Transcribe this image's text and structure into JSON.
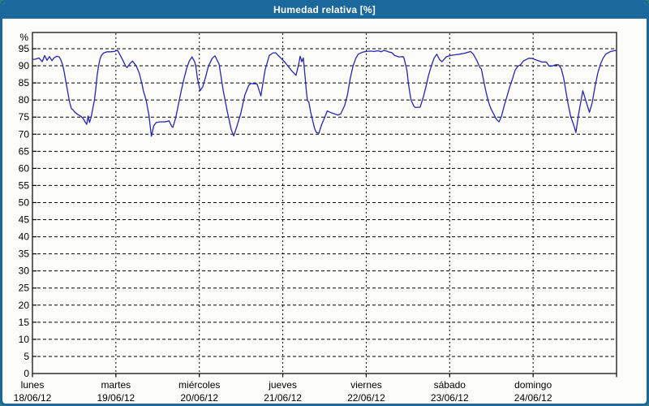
{
  "window": {
    "title": "Humedad relativa [%]"
  },
  "colors": {
    "frame": "#1a689c",
    "titlebar_text": "#ffffff",
    "panel_bg": "#fcfdf8",
    "axis": "#000000",
    "grid": "#000000",
    "line": "#2424bb",
    "outside_corner": "#2e7b7b"
  },
  "chart_data": {
    "type": "line",
    "title": "Humedad relativa [%]",
    "ylabel": "%",
    "ylim": [
      0,
      99.8
    ],
    "yticks": [
      0,
      5,
      10,
      15,
      20,
      25,
      30,
      35,
      40,
      45,
      50,
      55,
      60,
      65,
      70,
      75,
      80,
      85,
      90,
      95
    ],
    "xlim_hours": [
      0,
      168
    ],
    "grid": "dashed horizontal at each ytick, dashed vertical at each day boundary",
    "legend": "none",
    "days": [
      {
        "weekday": "lunes",
        "date": "18/06/12"
      },
      {
        "weekday": "martes",
        "date": "19/06/12"
      },
      {
        "weekday": "miércoles",
        "date": "20/06/12"
      },
      {
        "weekday": "jueves",
        "date": "21/06/12"
      },
      {
        "weekday": "viernes",
        "date": "22/06/12"
      },
      {
        "weekday": "sábado",
        "date": "23/06/12"
      },
      {
        "weekday": "domingo",
        "date": "24/06/12"
      }
    ],
    "series": [
      {
        "name": "Humedad relativa [%]",
        "color": "#2424bb",
        "x_unit": "hours from lunes 18/06/12 00:00",
        "points": [
          [
            0,
            91.8
          ],
          [
            1,
            92
          ],
          [
            1.9,
            92.3
          ],
          [
            2.8,
            91.2
          ],
          [
            3.5,
            93
          ],
          [
            4.2,
            91.6
          ],
          [
            4.9,
            92.7
          ],
          [
            5.6,
            91.5
          ],
          [
            6.3,
            92.4
          ],
          [
            7,
            92.8
          ],
          [
            7.7,
            92.6
          ],
          [
            8.2,
            91.7
          ],
          [
            8.7,
            90.2
          ],
          [
            9.2,
            87.9
          ],
          [
            9.6,
            85.4
          ],
          [
            10,
            83.2
          ],
          [
            10.4,
            80.9
          ],
          [
            10.8,
            78.9
          ],
          [
            11.2,
            77.5
          ],
          [
            11.7,
            77.1
          ],
          [
            12.2,
            76.4
          ],
          [
            13,
            75.8
          ],
          [
            14,
            75.2
          ],
          [
            14.7,
            74.4
          ],
          [
            15.2,
            73.5
          ],
          [
            15.6,
            72.9
          ],
          [
            16,
            75.3
          ],
          [
            16.4,
            73.4
          ],
          [
            16.9,
            75
          ],
          [
            17.4,
            77.8
          ],
          [
            17.8,
            79.8
          ],
          [
            18.2,
            83.1
          ],
          [
            18.6,
            87.1
          ],
          [
            19,
            89.9
          ],
          [
            19.4,
            91.8
          ],
          [
            19.8,
            93
          ],
          [
            20.5,
            93.8
          ],
          [
            21.5,
            94.1
          ],
          [
            22.5,
            94.1
          ],
          [
            23.5,
            94.2
          ],
          [
            24.1,
            94.4
          ],
          [
            24.5,
            94.5
          ],
          [
            25.3,
            93
          ],
          [
            26.1,
            91.4
          ],
          [
            26.8,
            89.9
          ],
          [
            27.2,
            89.5
          ],
          [
            28,
            90.6
          ],
          [
            28.8,
            91.4
          ],
          [
            29.9,
            89.9
          ],
          [
            30.7,
            87.9
          ],
          [
            31.5,
            84.7
          ],
          [
            31.9,
            82.7
          ],
          [
            32.7,
            80
          ],
          [
            33.5,
            75.5
          ],
          [
            34.2,
            69.4
          ],
          [
            34.9,
            72.5
          ],
          [
            35.6,
            73.4
          ],
          [
            36.6,
            73.6
          ],
          [
            37.6,
            73.6
          ],
          [
            38.6,
            73.7
          ],
          [
            39.3,
            73.9
          ],
          [
            40.1,
            72.2
          ],
          [
            40.4,
            72
          ],
          [
            41.2,
            74.8
          ],
          [
            42,
            78.8
          ],
          [
            42.8,
            82.7
          ],
          [
            43.6,
            86.3
          ],
          [
            44.3,
            89.1
          ],
          [
            45.1,
            91.4
          ],
          [
            45.9,
            92.6
          ],
          [
            46.7,
            91.1
          ],
          [
            47.1,
            89.1
          ],
          [
            47.4,
            86.7
          ],
          [
            48.2,
            82.7
          ],
          [
            49,
            83.9
          ],
          [
            49.8,
            86.7
          ],
          [
            50.6,
            89.9
          ],
          [
            51.7,
            92.2
          ],
          [
            52.5,
            92.9
          ],
          [
            53.7,
            90.5
          ],
          [
            54.8,
            83.1
          ],
          [
            56,
            76.8
          ],
          [
            57.2,
            71.3
          ],
          [
            57.9,
            69.5
          ],
          [
            58.7,
            72
          ],
          [
            59.9,
            76
          ],
          [
            61.1,
            81.5
          ],
          [
            62.2,
            84.3
          ],
          [
            62.8,
            84.8
          ],
          [
            64.6,
            84.7
          ],
          [
            65.7,
            81.2
          ],
          [
            66.9,
            88.7
          ],
          [
            68.1,
            93
          ],
          [
            69.2,
            93.8
          ],
          [
            70,
            93.8
          ],
          [
            70.7,
            93
          ],
          [
            72.3,
            91.4
          ],
          [
            73.5,
            89.9
          ],
          [
            74.7,
            88.4
          ],
          [
            75.8,
            87.2
          ],
          [
            76.6,
            90.6
          ],
          [
            77,
            92.8
          ],
          [
            77.5,
            91.2
          ],
          [
            77.9,
            92.3
          ],
          [
            78.4,
            87
          ],
          [
            78.8,
            82.4
          ],
          [
            79.1,
            79.8
          ],
          [
            79.5,
            79.4
          ],
          [
            80,
            76.5
          ],
          [
            80.7,
            73.5
          ],
          [
            81.2,
            71.5
          ],
          [
            81.7,
            70.5
          ],
          [
            82.4,
            70.3
          ],
          [
            83.2,
            72.9
          ],
          [
            84,
            74.8
          ],
          [
            84.8,
            76.8
          ],
          [
            85.6,
            76.4
          ],
          [
            86.7,
            76
          ],
          [
            87.9,
            75.6
          ],
          [
            88.7,
            76
          ],
          [
            89.8,
            78.4
          ],
          [
            90.6,
            81.5
          ],
          [
            91.4,
            86.3
          ],
          [
            92.2,
            89.9
          ],
          [
            93,
            92.2
          ],
          [
            93.7,
            93.4
          ],
          [
            95,
            94
          ],
          [
            96,
            94.2
          ],
          [
            97.1,
            94.3
          ],
          [
            98.2,
            94.2
          ],
          [
            99.4,
            94.4
          ],
          [
            100.3,
            94.1
          ],
          [
            101,
            94.5
          ],
          [
            101.9,
            94.3
          ],
          [
            102.6,
            94
          ],
          [
            103.3,
            93.9
          ],
          [
            104.2,
            93
          ],
          [
            105.4,
            92.6
          ],
          [
            106.6,
            92.7
          ],
          [
            106.9,
            92.2
          ],
          [
            107.7,
            88.7
          ],
          [
            108.1,
            85.1
          ],
          [
            108.5,
            82.4
          ],
          [
            108.9,
            80
          ],
          [
            109.7,
            78.2
          ],
          [
            110.1,
            77.8
          ],
          [
            111.5,
            77.9
          ],
          [
            112.4,
            80.8
          ],
          [
            113.2,
            83.9
          ],
          [
            113.9,
            87.1
          ],
          [
            114.7,
            89.9
          ],
          [
            115.5,
            92.2
          ],
          [
            116.3,
            93.4
          ],
          [
            117.1,
            91.8
          ],
          [
            117.8,
            91.2
          ],
          [
            119,
            92.6
          ],
          [
            120.2,
            93
          ],
          [
            121.3,
            93.2
          ],
          [
            122.9,
            93.4
          ],
          [
            124.4,
            93.7
          ],
          [
            126,
            94.2
          ],
          [
            126.8,
            93.4
          ],
          [
            127.9,
            91.4
          ],
          [
            128.7,
            89.5
          ],
          [
            129.1,
            89.1
          ],
          [
            129.5,
            87.1
          ],
          [
            130.3,
            83.1
          ],
          [
            131.1,
            79.6
          ],
          [
            131.8,
            77.6
          ],
          [
            132.6,
            76
          ],
          [
            133.4,
            74.4
          ],
          [
            134.2,
            73.6
          ],
          [
            134.9,
            75.2
          ],
          [
            135.7,
            78.4
          ],
          [
            136.5,
            81.1
          ],
          [
            137.3,
            83.9
          ],
          [
            138.1,
            86.3
          ],
          [
            138.8,
            88.7
          ],
          [
            139.6,
            89.9
          ],
          [
            140.4,
            90.3
          ],
          [
            141.2,
            91.4
          ],
          [
            142.7,
            92.2
          ],
          [
            143.5,
            92.2
          ],
          [
            144.7,
            91.8
          ],
          [
            145.8,
            91.4
          ],
          [
            146.6,
            91.1
          ],
          [
            147.8,
            91.1
          ],
          [
            148.6,
            89.9
          ],
          [
            149.3,
            89.9
          ],
          [
            150.5,
            90.3
          ],
          [
            151.3,
            90.3
          ],
          [
            152.1,
            89.1
          ],
          [
            152.8,
            86.3
          ],
          [
            153.6,
            81.5
          ],
          [
            154,
            79.2
          ],
          [
            154.8,
            75.2
          ],
          [
            155.6,
            72.9
          ],
          [
            156.3,
            70.5
          ],
          [
            157.1,
            76
          ],
          [
            158.3,
            82.7
          ],
          [
            159.1,
            80
          ],
          [
            160.2,
            76.4
          ],
          [
            161,
            79.2
          ],
          [
            161.8,
            83.9
          ],
          [
            162.6,
            87.9
          ],
          [
            163.3,
            90.3
          ],
          [
            164.1,
            92.2
          ],
          [
            164.9,
            93.4
          ],
          [
            166.1,
            94.1
          ],
          [
            167.2,
            94.4
          ],
          [
            168,
            94.5
          ]
        ]
      }
    ]
  }
}
